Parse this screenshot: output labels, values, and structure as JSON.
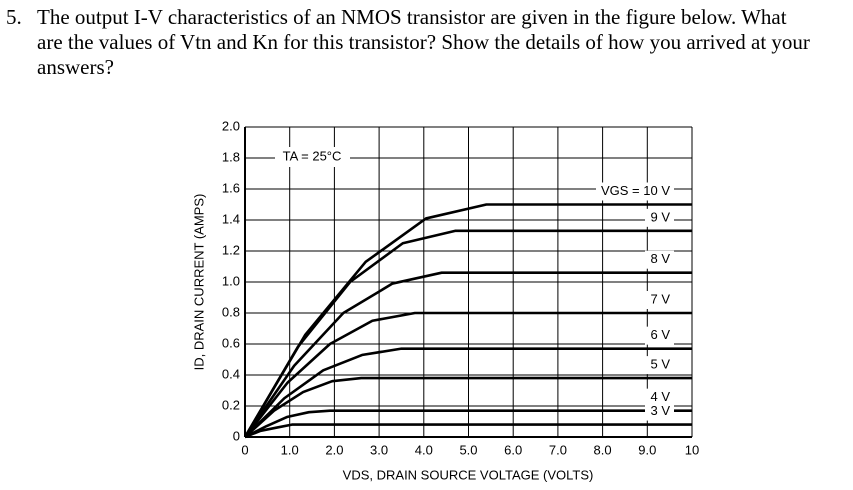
{
  "question": {
    "number": "5.",
    "lines": [
      "The output I-V characteristics of an NMOS transistor are given in the figure below.  What",
      "are the values of Vtn and Kn for this transistor?  Show the details of how you arrived at your",
      "answers?"
    ]
  },
  "chart_data": {
    "type": "line",
    "xlabel": "VDS, DRAIN SOURCE VOLTAGE (VOLTS)",
    "ylabel": "ID, DRAIN CURRENT (AMPS)",
    "annotation": "TA = 25°C",
    "xlim": [
      0,
      10
    ],
    "ylim": [
      0,
      2
    ],
    "xticks": [
      0,
      {
        "value": 1,
        "label": "1.0"
      },
      {
        "value": 2,
        "label": "2.0"
      },
      {
        "value": 3,
        "label": "3.0"
      },
      {
        "value": 4,
        "label": "4.0"
      },
      {
        "value": 5,
        "label": "5.0"
      },
      {
        "value": 6,
        "label": "6.0"
      },
      {
        "value": 7,
        "label": "7.0"
      },
      {
        "value": 8,
        "label": "8.0"
      },
      {
        "value": 9,
        "label": "9.0"
      },
      10
    ],
    "yticks": [
      0,
      0.2,
      0.4,
      0.6,
      0.8,
      {
        "value": 1,
        "label": "1.0"
      },
      1.2,
      1.4,
      1.6,
      1.8,
      {
        "value": 2,
        "label": "2.0"
      }
    ],
    "grid": true,
    "series": [
      {
        "name": "VGS = 10 V",
        "color": "#000000",
        "x": [
          0,
          1.35,
          2.7,
          4.05,
          5.4,
          10
        ],
        "values": [
          0,
          0.66,
          1.13,
          1.41,
          1.5,
          1.5
        ]
      },
      {
        "name": "9 V",
        "color": "#000000",
        "x": [
          0,
          1.18,
          2.35,
          3.53,
          4.7,
          10
        ],
        "values": [
          0,
          0.58,
          1.0,
          1.25,
          1.33,
          1.33
        ]
      },
      {
        "name": "8 V",
        "color": "#000000",
        "x": [
          0,
          1.1,
          2.2,
          3.3,
          4.4,
          10
        ],
        "values": [
          0,
          0.46,
          0.8,
          0.99,
          1.06,
          1.06
        ]
      },
      {
        "name": "7 V",
        "color": "#000000",
        "x": [
          0,
          0.95,
          1.9,
          2.85,
          3.8,
          10
        ],
        "values": [
          0,
          0.35,
          0.6,
          0.75,
          0.8,
          0.8
        ]
      },
      {
        "name": "6 V",
        "color": "#000000",
        "x": [
          0,
          0.88,
          1.75,
          2.63,
          3.5,
          10
        ],
        "values": [
          0,
          0.25,
          0.43,
          0.53,
          0.57,
          0.57
        ]
      },
      {
        "name": "5 V",
        "color": "#000000",
        "x": [
          0,
          0.65,
          1.3,
          1.95,
          2.6,
          10
        ],
        "values": [
          0,
          0.17,
          0.29,
          0.36,
          0.38,
          0.38
        ]
      },
      {
        "name": "4 V",
        "color": "#000000",
        "x": [
          0,
          0.48,
          0.95,
          1.43,
          1.9,
          10
        ],
        "values": [
          0,
          0.07,
          0.13,
          0.16,
          0.17,
          0.17
        ]
      },
      {
        "name": "3 V",
        "color": "#000000",
        "x": [
          0,
          0.35,
          0.7,
          1.05,
          1.4,
          10
        ],
        "values": [
          0,
          0.04,
          0.06,
          0.08,
          0.08,
          0.08
        ]
      }
    ]
  }
}
